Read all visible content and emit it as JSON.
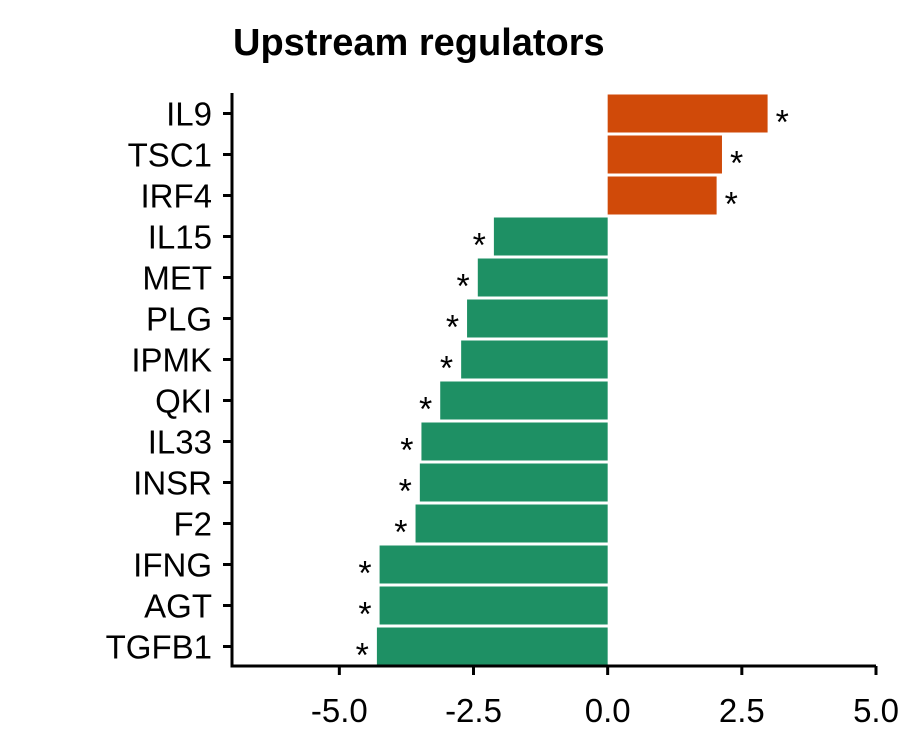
{
  "chart_data": {
    "type": "bar",
    "orientation": "horizontal",
    "title": "Upstream regulators",
    "xlabel": "",
    "ylabel": "",
    "xlim": [
      -7.0,
      5.0
    ],
    "x_ticks": [
      -5.0,
      -2.5,
      0.0,
      2.5,
      5.0
    ],
    "x_tick_labels": [
      "-5.0",
      "-2.5",
      "0.0",
      "2.5",
      "5.0"
    ],
    "categories": [
      "IL9",
      "TSC1",
      "IRF4",
      "IL15",
      "MET",
      "PLG",
      "IPMK",
      "QKI",
      "IL33",
      "INSR",
      "F2",
      "IFNG",
      "AGT",
      "TGFB1"
    ],
    "values": [
      2.98,
      2.13,
      2.03,
      -2.12,
      -2.42,
      -2.62,
      -2.73,
      -3.12,
      -3.47,
      -3.5,
      -3.58,
      -4.25,
      -4.25,
      -4.3
    ],
    "significance": [
      "*",
      "*",
      "*",
      "*",
      "*",
      "*",
      "*",
      "*",
      "*",
      "*",
      "*",
      "*",
      "*",
      "*"
    ],
    "colors": {
      "positive": "#D04A09",
      "negative": "#1E9064"
    },
    "grid": false,
    "legend": "none"
  }
}
